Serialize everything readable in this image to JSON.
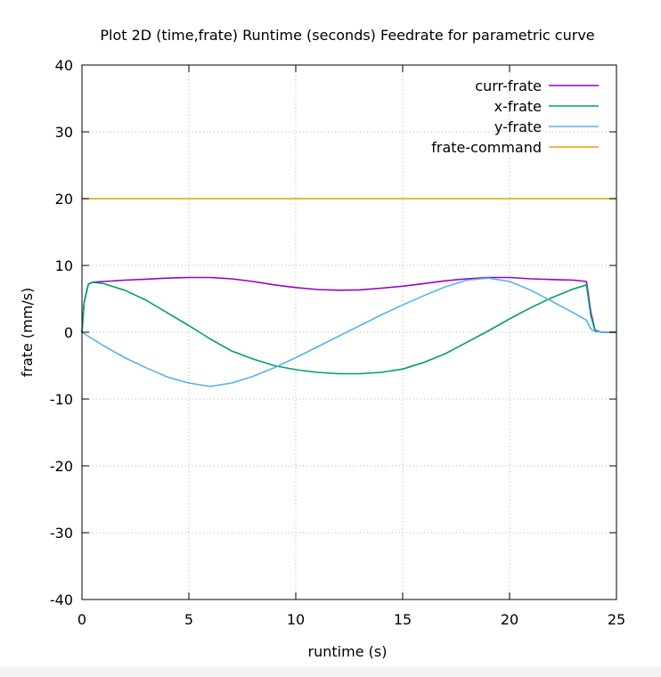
{
  "chart_data": {
    "type": "line",
    "title": "Plot 2D (time,frate) Runtime (seconds) Feedrate for parametric curve",
    "xlabel": "runtime (s)",
    "ylabel": "frate (mm/s)",
    "xlim": [
      0,
      25
    ],
    "ylim": [
      -40,
      40
    ],
    "xticks": [
      0,
      5,
      10,
      15,
      20,
      25
    ],
    "yticks": [
      -40,
      -30,
      -20,
      -10,
      0,
      10,
      20,
      30,
      40
    ],
    "grid": true,
    "legend_position": "top-right",
    "series": [
      {
        "name": "curr-frate",
        "color": "#9400d3",
        "x": [
          0,
          0.1,
          0.3,
          0.5,
          1,
          2,
          3,
          4,
          5,
          6,
          7,
          8,
          9,
          10,
          11,
          12,
          13,
          14,
          15,
          16,
          17,
          18,
          19,
          20,
          21,
          22,
          23,
          23.6,
          23.8,
          24.0,
          24.3,
          25
        ],
        "y": [
          0,
          4.5,
          7.2,
          7.5,
          7.6,
          7.8,
          7.95,
          8.1,
          8.2,
          8.2,
          8.0,
          7.6,
          7.1,
          6.7,
          6.4,
          6.3,
          6.35,
          6.6,
          6.9,
          7.3,
          7.7,
          8.0,
          8.2,
          8.2,
          8.0,
          7.9,
          7.8,
          7.6,
          3,
          0.3,
          0,
          0
        ]
      },
      {
        "name": "x-frate",
        "color": "#009e73",
        "x": [
          0,
          0.1,
          0.3,
          0.5,
          1,
          2,
          3,
          4,
          5,
          6,
          7,
          8,
          9,
          10,
          11,
          12,
          13,
          14,
          15,
          16,
          17,
          18,
          19,
          20,
          21,
          22,
          23,
          23.6,
          23.8,
          24.0,
          24.3,
          25
        ],
        "y": [
          0,
          4.5,
          7.2,
          7.5,
          7.3,
          6.3,
          4.8,
          2.9,
          1.0,
          -1.0,
          -2.8,
          -4.0,
          -5.0,
          -5.6,
          -6.0,
          -6.2,
          -6.2,
          -6.0,
          -5.5,
          -4.5,
          -3.2,
          -1.5,
          0.2,
          2.0,
          3.7,
          5.2,
          6.5,
          7.1,
          2.5,
          0.2,
          0,
          0
        ]
      },
      {
        "name": "y-frate",
        "color": "#56b4e9",
        "x": [
          0,
          0.5,
          1,
          2,
          3,
          4,
          5,
          6,
          7,
          8,
          9,
          10,
          11,
          12,
          13,
          14,
          15,
          16,
          17,
          18,
          19,
          20,
          21,
          22,
          23,
          23.6,
          23.8,
          24.0,
          24.3,
          25
        ],
        "y": [
          0,
          -1.0,
          -2.0,
          -3.8,
          -5.3,
          -6.7,
          -7.6,
          -8.1,
          -7.6,
          -6.6,
          -5.3,
          -3.8,
          -2.2,
          -0.6,
          1.0,
          2.6,
          4.1,
          5.5,
          6.8,
          7.8,
          8.1,
          7.6,
          6.3,
          4.6,
          2.9,
          1.8,
          0.5,
          0.1,
          0,
          0
        ]
      },
      {
        "name": "frate-command",
        "color": "#e69f00",
        "x": [
          0,
          25
        ],
        "y": [
          20,
          20
        ]
      }
    ]
  }
}
